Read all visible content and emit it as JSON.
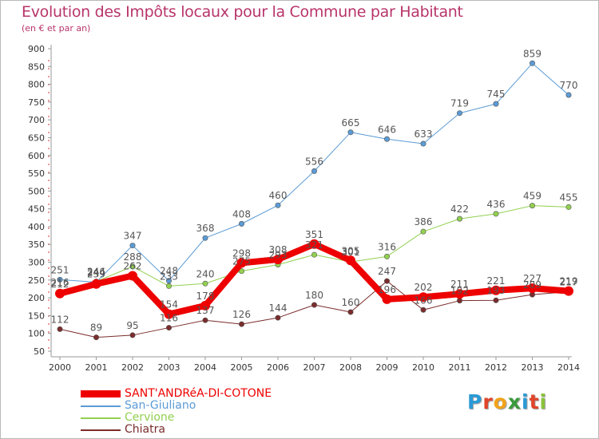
{
  "header": {
    "title": "Evolution des Impôts locaux pour la Commune par Habitant",
    "subtitle": "(en € et par an)"
  },
  "logo": {
    "text": "Proxiti",
    "letters": [
      {
        "ch": "P",
        "color": "#2a9ad6"
      },
      {
        "ch": "r",
        "color": "#e0452a"
      },
      {
        "ch": "o",
        "color": "#f2a31a"
      },
      {
        "ch": "x",
        "color": "#3a9a3a"
      },
      {
        "ch": "i",
        "color": "#2a9ad6"
      },
      {
        "ch": "t",
        "color": "#e0452a"
      },
      {
        "ch": "i",
        "color": "#8ac23a"
      }
    ]
  },
  "colors": {
    "title": "#b8346a",
    "axis": "#999999",
    "grid": "#dddddd"
  },
  "chart_data": {
    "type": "line",
    "title": "Evolution des Impôts locaux pour la Commune par Habitant",
    "subtitle": "(en € et par an)",
    "xlabel": "",
    "ylabel": "",
    "x": [
      "2000",
      "2001",
      "2002",
      "2003",
      "2004",
      "2005",
      "2006",
      "2007",
      "2008",
      "2009",
      "2010",
      "2011",
      "2012",
      "2013",
      "2014"
    ],
    "ylim": [
      50,
      900
    ],
    "yticks": [
      50,
      100,
      150,
      200,
      250,
      300,
      350,
      400,
      450,
      500,
      550,
      600,
      650,
      700,
      750,
      800,
      850,
      900
    ],
    "grid": false,
    "legend": "bottom-left",
    "series": [
      {
        "name": "SANT'ANDRéA-DI-COTONE",
        "color": "#ee0000",
        "width": 8,
        "values": [
          212,
          239,
          262,
          154,
          178,
          298,
          308,
          351,
          305,
          196,
          202,
          211,
          221,
          227,
          219
        ]
      },
      {
        "name": "San-Giuliano",
        "color": "#5b9bd5",
        "width": 1,
        "values": [
          251,
          244,
          347,
          248,
          368,
          408,
          460,
          556,
          665,
          646,
          633,
          719,
          745,
          859,
          770
        ]
      },
      {
        "name": "Cervione",
        "color": "#92d050",
        "width": 1,
        "values": [
          216,
          246,
          288,
          233,
          240,
          275,
          293,
          321,
          301,
          316,
          386,
          422,
          436,
          459,
          455
        ]
      },
      {
        "name": "Chiatra",
        "color": "#7b2c2c",
        "width": 1,
        "values": [
          112,
          89,
          95,
          116,
          137,
          126,
          144,
          180,
          160,
          247,
          166,
          192,
          193,
          209,
          217
        ]
      }
    ]
  }
}
